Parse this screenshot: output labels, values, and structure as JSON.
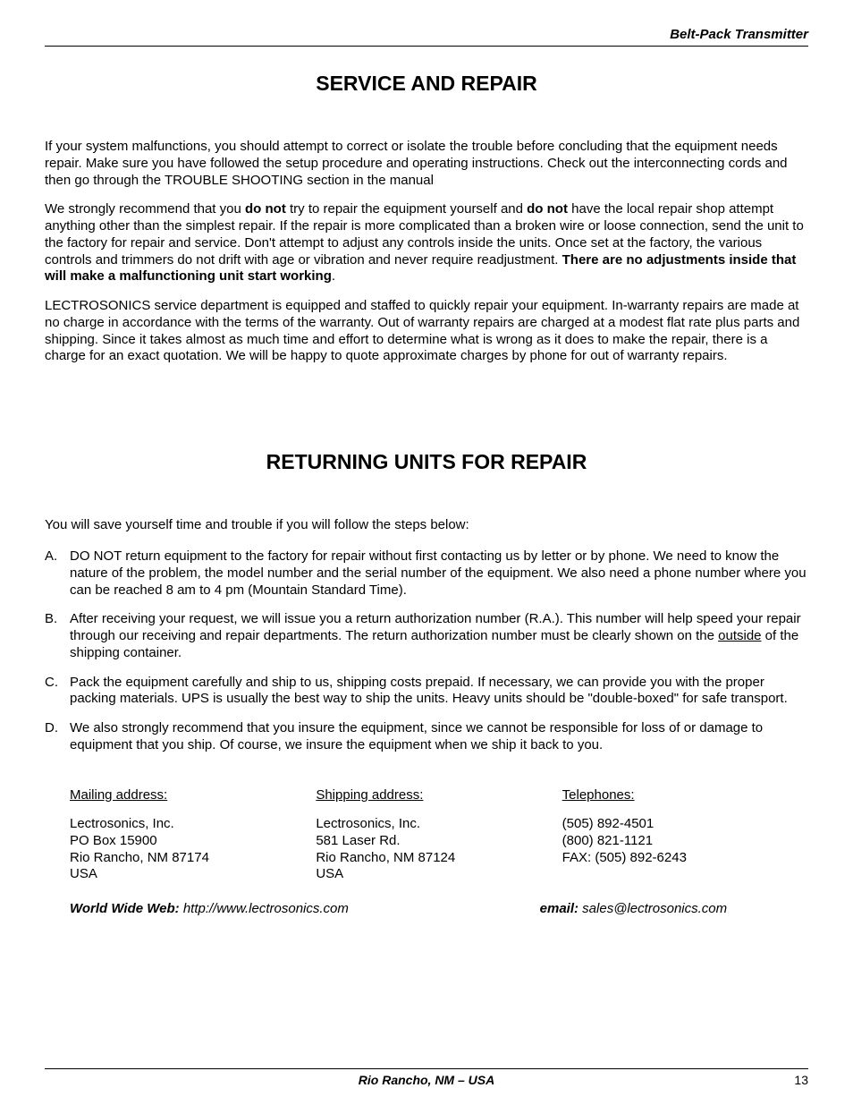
{
  "header": {
    "title": "Belt-Pack Transmitter"
  },
  "section1": {
    "heading": "SERVICE AND REPAIR",
    "p1_a": "If your system malfunctions, you should attempt to correct or isolate the trouble before concluding that the equipment needs repair.  Make sure you have followed the setup procedure and operating instructions.  Check out the interconnecting cords and then go through the TROUBLE SHOOTING section in the manual",
    "p2_a": "We strongly recommend that you ",
    "p2_b": "do not",
    "p2_c": " try to repair the equipment yourself and ",
    "p2_d": "do not",
    "p2_e": " have the local repair shop attempt anything other than the simplest repair.  If the repair is more complicated than a broken wire or loose connection, send the unit to the factory for repair and service.  Don't attempt to adjust any controls inside the units.  Once set at the factory, the various controls and trimmers do not drift with age or vibration and never require readjustment.  ",
    "p2_f": "There are no adjustments inside that will make a malfunctioning unit start working",
    "p2_g": ".",
    "p3": "LECTROSONICS service department is equipped and staffed to quickly repair your equipment.  In-warranty repairs are made at no charge in accordance with the terms of the warranty.  Out of warranty repairs are charged at a modest flat rate plus parts and shipping.  Since it takes almost as much time and effort to determine what is wrong as it does to make the repair, there is a charge for an exact quotation.  We will be happy to quote approximate charges by phone for out of warranty repairs."
  },
  "section2": {
    "heading": "RETURNING UNITS FOR REPAIR",
    "intro": "You will save yourself time and trouble if you will follow the steps below:",
    "items": [
      {
        "marker": "A.",
        "text": "DO NOT return equipment to the factory for repair without first contacting us by letter or by phone.  We need to know the nature of the problem, the model number and the serial number of the equipment.  We also need a phone number where you can be reached 8 am to 4 pm (Mountain Standard Time)."
      },
      {
        "marker": "B.",
        "text_a": "After receiving your request, we will issue you a return authorization number (R.A.).  This number will help speed your repair through our receiving and repair departments.  The return authorization number must be clearly shown on the ",
        "text_u": "outside",
        "text_b": " of the shipping container."
      },
      {
        "marker": "C.",
        "text": "Pack the equipment carefully and ship to us, shipping costs prepaid.  If necessary, we can provide you with the proper packing materials.  UPS is usually the best way to ship the units.  Heavy units should be \"double-boxed\" for safe transport."
      },
      {
        "marker": "D.",
        "text": "We also strongly recommend that you insure the equipment, since we cannot be responsible for loss of or damage to equipment that you ship.  Of course,  we insure the equipment when we ship it back to you."
      }
    ]
  },
  "contact": {
    "mailing": {
      "heading": "Mailing address:",
      "l1": "Lectrosonics, Inc.",
      "l2": "PO Box 15900",
      "l3": "Rio Rancho, NM  87174",
      "l4": "USA"
    },
    "shipping": {
      "heading": "Shipping address:",
      "l1": "Lectrosonics, Inc.",
      "l2": "581 Laser Rd.",
      "l3": "Rio Rancho, NM  87124",
      "l4": "USA"
    },
    "telephones": {
      "heading": "Telephones:",
      "l1": "(505) 892-4501",
      "l2": "(800) 821-1121",
      "l3": "FAX: (505) 892-6243"
    }
  },
  "web": {
    "www_label": "World Wide Web:  ",
    "www_value": "http://www.lectrosonics.com",
    "email_label": "email: ",
    "email_value": "sales@lectrosonics.com"
  },
  "footer": {
    "center": "Rio Rancho, NM – USA",
    "page": "13"
  }
}
